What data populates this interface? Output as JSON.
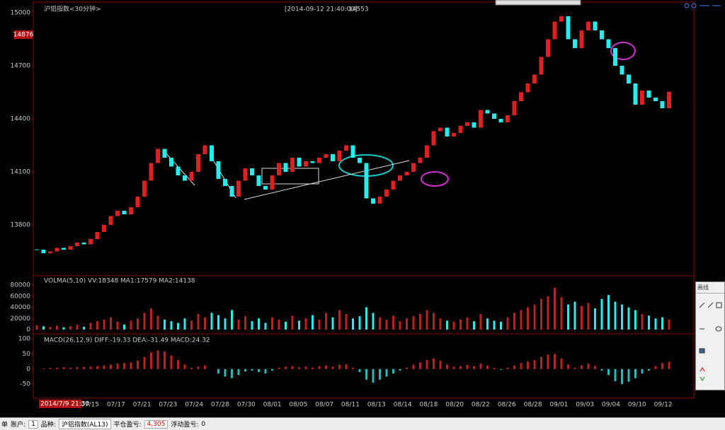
{
  "header": {
    "title": "沪铝指数<30分钟>",
    "timestamp": "[2014-09-12 21:40:00]",
    "last_price": "14553"
  },
  "cursor_price": 14876,
  "cursor_time": "2014/7/9 21:30",
  "price_panel": {
    "ylim": [
      13520,
      15060
    ],
    "yticks": [
      13800,
      14100,
      14400,
      14700,
      15000
    ],
    "closes": [
      13660,
      13640,
      13650,
      13670,
      13660,
      13680,
      13700,
      13690,
      13720,
      13760,
      13800,
      13850,
      13880,
      13860,
      13900,
      13960,
      14050,
      14150,
      14230,
      14180,
      14130,
      14080,
      14050,
      14100,
      14200,
      14250,
      14160,
      14060,
      14020,
      13960,
      14050,
      14120,
      14080,
      14020,
      14000,
      14080,
      14150,
      14100,
      14180,
      14130,
      14160,
      14150,
      14180,
      14200,
      14160,
      14220,
      14250,
      14180,
      14150,
      13950,
      13920,
      13960,
      14000,
      14050,
      14080,
      14100,
      14150,
      14180,
      14250,
      14330,
      14350,
      14300,
      14320,
      14360,
      14380,
      14350,
      14450,
      14430,
      14400,
      14380,
      14420,
      14500,
      14550,
      14600,
      14650,
      14750,
      14850,
      14950,
      14980,
      14850,
      14800,
      14900,
      14950,
      14900,
      14850,
      14800,
      14700,
      14650,
      14600,
      14480,
      14560,
      14520,
      14500,
      14460,
      14553
    ]
  },
  "volume_panel": {
    "label": "VOLMA(5,10)  VV:18348  MA1:17579  MA2:14138",
    "ylim": [
      0,
      94000
    ],
    "yticks": [
      0,
      20000,
      40000,
      60000,
      80000
    ],
    "values": [
      8000,
      6000,
      5000,
      7000,
      4000,
      6000,
      9000,
      5000,
      12000,
      15000,
      18000,
      22000,
      14000,
      9000,
      16000,
      20000,
      30000,
      38000,
      25000,
      18000,
      15000,
      12000,
      20000,
      16000,
      28000,
      22000,
      30000,
      26000,
      20000,
      35000,
      18000,
      24000,
      15000,
      20000,
      12000,
      22000,
      18000,
      14000,
      25000,
      16000,
      20000,
      26000,
      18000,
      30000,
      22000,
      35000,
      28000,
      20000,
      24000,
      40000,
      30000,
      22000,
      18000,
      25000,
      15000,
      20000,
      24000,
      28000,
      35000,
      30000,
      20000,
      16000,
      14000,
      18000,
      22000,
      15000,
      28000,
      20000,
      16000,
      14000,
      22000,
      30000,
      35000,
      40000,
      45000,
      55000,
      60000,
      75000,
      58000,
      45000,
      50000,
      42000,
      48000,
      38000,
      55000,
      62000,
      50000,
      45000,
      40000,
      35000,
      28000,
      25000,
      20000,
      22000,
      18348
    ]
  },
  "macd_panel": {
    "label": "MACD(26,12,9)  DIFF:-19.33  DEA:-31.49  MACD:24.32",
    "ylim": [
      -94,
      112
    ],
    "yticks": [
      -50,
      0,
      50,
      100
    ],
    "values": [
      0,
      2,
      4,
      5,
      6,
      5,
      6,
      7,
      8,
      10,
      12,
      15,
      18,
      20,
      22,
      28,
      40,
      55,
      62,
      58,
      45,
      30,
      15,
      5,
      8,
      12,
      0,
      -15,
      -25,
      -30,
      -20,
      -8,
      -5,
      -10,
      -15,
      -5,
      5,
      8,
      10,
      6,
      8,
      5,
      10,
      12,
      8,
      14,
      16,
      5,
      -10,
      -35,
      -45,
      -35,
      -25,
      -15,
      -5,
      5,
      15,
      22,
      30,
      35,
      28,
      15,
      8,
      10,
      14,
      10,
      18,
      12,
      4,
      -2,
      5,
      12,
      20,
      25,
      30,
      40,
      48,
      50,
      35,
      15,
      5,
      12,
      18,
      10,
      -5,
      -20,
      -40,
      -50,
      -42,
      -30,
      -15,
      -5,
      10,
      20,
      24.32
    ]
  },
  "dates": [
    "07/15",
    "07/17",
    "07/21",
    "07/23",
    "07/24",
    "07/28",
    "07/30",
    "08/01",
    "08/05",
    "08/07",
    "08/11",
    "08/13",
    "08/14",
    "08/18",
    "08/20",
    "08/22",
    "08/26",
    "08/28",
    "09/01",
    "09/03",
    "09/04",
    "09/10",
    "09/12"
  ],
  "toolbar": {
    "title": "画线"
  },
  "status_bar": {
    "order": "单",
    "account_label": "账户:",
    "account": "1",
    "symbol_label": "品种:",
    "symbol": "沪铝指数(AL13)",
    "close_pnl_label": "平仓盈亏:",
    "close_pnl": "4,305",
    "float_pnl_label": "浮动盈亏:",
    "float_pnl": "0"
  }
}
